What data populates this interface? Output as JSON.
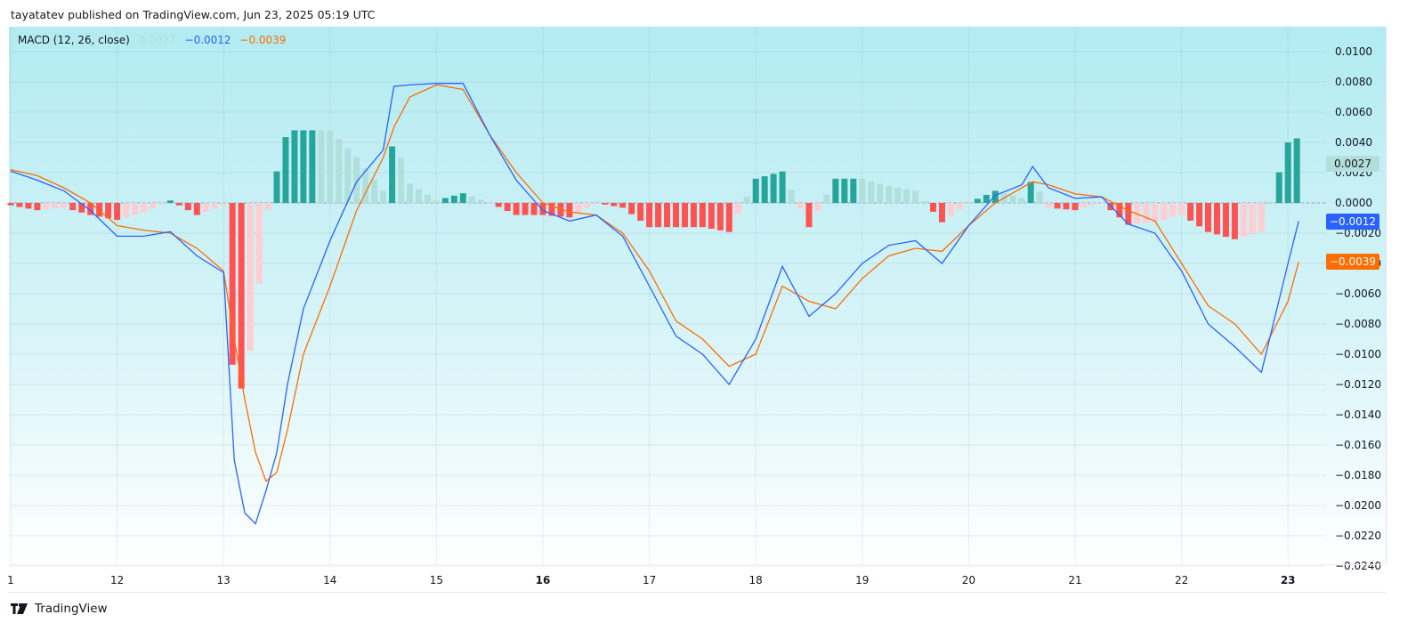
{
  "header": {
    "text": "tayatatev published on TradingView.com, Jun 23, 2025 05:19 UTC"
  },
  "legend": {
    "name": "MACD (12, 26, close)",
    "histogram_value": "0.0027",
    "macd_value": "−0.0012",
    "signal_value": "−0.0039"
  },
  "colors": {
    "macd": "#2962ff",
    "signal": "#ff6d00",
    "hist_pos_strong": "#26a69a",
    "hist_pos_weak": "#b2dfdb",
    "hist_neg_strong": "#ff5252",
    "hist_neg_weak": "#ffcdd2"
  },
  "price_tags": {
    "histogram": "0.0027",
    "macd": "−0.0012",
    "signal": "−0.0039"
  },
  "footer": {
    "brand": "TradingView"
  },
  "chart_data": {
    "type": "line",
    "title": "MACD (12, 26, close)",
    "xlabel": "",
    "ylabel": "",
    "x_ticks": [
      "1",
      "12",
      "13",
      "14",
      "15",
      "16",
      "17",
      "18",
      "19",
      "20",
      "21",
      "22",
      "23"
    ],
    "y_ticks": [
      "0.0100",
      "0.0080",
      "0.0060",
      "0.0040",
      "0.0020",
      "0.0000",
      "−0.0020",
      "−0.0040",
      "−0.0060",
      "−0.0080",
      "−0.0100",
      "−0.0120",
      "−0.0140",
      "−0.0160",
      "−0.0180",
      "−0.0200",
      "−0.0220",
      "−0.0240"
    ],
    "ylim": [
      -0.024,
      0.0105
    ],
    "grid": true,
    "legend_position": "top-left",
    "x": [
      11.0,
      11.25,
      11.5,
      11.75,
      12.0,
      12.25,
      12.5,
      12.75,
      13.0,
      13.1,
      13.2,
      13.3,
      13.4,
      13.5,
      13.6,
      13.75,
      14.0,
      14.25,
      14.5,
      14.6,
      14.75,
      15.0,
      15.25,
      15.5,
      15.75,
      16.0,
      16.25,
      16.5,
      16.75,
      17.0,
      17.25,
      17.5,
      17.75,
      18.0,
      18.25,
      18.5,
      18.75,
      19.0,
      19.25,
      19.5,
      19.75,
      20.0,
      20.25,
      20.5,
      20.6,
      20.75,
      21.0,
      21.25,
      21.5,
      21.75,
      22.0,
      22.25,
      22.5,
      22.75,
      23.0,
      23.1
    ],
    "series": [
      {
        "name": "MACD",
        "values": [
          0.0021,
          0.0015,
          0.0008,
          -0.0005,
          -0.0022,
          -0.0022,
          -0.0019,
          -0.0035,
          -0.0046,
          -0.017,
          -0.0205,
          -0.0212,
          -0.019,
          -0.0165,
          -0.012,
          -0.007,
          -0.0025,
          0.0014,
          0.0035,
          0.0077,
          0.0078,
          0.0079,
          0.0079,
          0.0045,
          0.0015,
          -0.0005,
          -0.0012,
          -0.0008,
          -0.0022,
          -0.0055,
          -0.0088,
          -0.01,
          -0.012,
          -0.009,
          -0.0042,
          -0.0075,
          -0.006,
          -0.004,
          -0.0028,
          -0.0025,
          -0.004,
          -0.0015,
          0.0005,
          0.0012,
          0.0024,
          0.001,
          0.0003,
          0.0004,
          -0.0014,
          -0.002,
          -0.0045,
          -0.008,
          -0.0095,
          -0.0112,
          -0.004,
          -0.0012
        ]
      },
      {
        "name": "Signal",
        "values": [
          0.0022,
          0.0018,
          0.001,
          0.0,
          -0.0015,
          -0.0018,
          -0.002,
          -0.003,
          -0.0045,
          -0.009,
          -0.013,
          -0.0165,
          -0.0184,
          -0.0178,
          -0.015,
          -0.01,
          -0.0055,
          -0.0005,
          0.003,
          0.005,
          0.007,
          0.0078,
          0.0075,
          0.0045,
          0.002,
          0.0,
          -0.0006,
          -0.0008,
          -0.002,
          -0.0045,
          -0.0078,
          -0.009,
          -0.0108,
          -0.01,
          -0.0055,
          -0.0065,
          -0.007,
          -0.005,
          -0.0035,
          -0.003,
          -0.0032,
          -0.0015,
          0.0,
          0.001,
          0.0014,
          0.0012,
          0.0006,
          0.0004,
          -0.0005,
          -0.0012,
          -0.004,
          -0.0068,
          -0.008,
          -0.01,
          -0.0065,
          -0.0039
        ]
      }
    ],
    "histogram": {
      "name": "Histogram",
      "last_value": 0.0027,
      "segments": [
        {
          "from": 11.0,
          "to": 12.0,
          "approx_range": [
            -0.0011,
            0.0001
          ]
        },
        {
          "from": 12.0,
          "to": 13.0,
          "approx_range": [
            -0.0015,
            0.0002
          ]
        },
        {
          "from": 13.0,
          "to": 13.5,
          "approx_range": [
            -0.0082,
            0.0
          ]
        },
        {
          "from": 13.5,
          "to": 14.5,
          "approx_range": [
            0.0,
            0.0054
          ]
        },
        {
          "from": 14.5,
          "to": 15.2,
          "approx_range": [
            0.0,
            0.0043
          ]
        },
        {
          "from": 15.3,
          "to": 16.0,
          "approx_range": [
            -0.0024,
            0.0
          ]
        },
        {
          "from": 16.0,
          "to": 17.8,
          "approx_range": [
            -0.0026,
            0.0002
          ]
        },
        {
          "from": 17.8,
          "to": 18.5,
          "approx_range": [
            0.0,
            0.0027
          ]
        },
        {
          "from": 18.5,
          "to": 18.75,
          "approx_range": [
            -0.0014,
            0.0
          ]
        },
        {
          "from": 18.75,
          "to": 19.6,
          "approx_range": [
            0.0,
            0.0017
          ]
        },
        {
          "from": 19.6,
          "to": 19.7,
          "approx_range": [
            -0.0009,
            0.0
          ]
        },
        {
          "from": 19.7,
          "to": 20.7,
          "approx_range": [
            0.0,
            0.0015
          ]
        },
        {
          "from": 20.7,
          "to": 22.8,
          "approx_range": [
            -0.0028,
            0.0002
          ]
        },
        {
          "from": 22.8,
          "to": 23.1,
          "approx_range": [
            0.0,
            0.0038
          ]
        }
      ]
    }
  }
}
